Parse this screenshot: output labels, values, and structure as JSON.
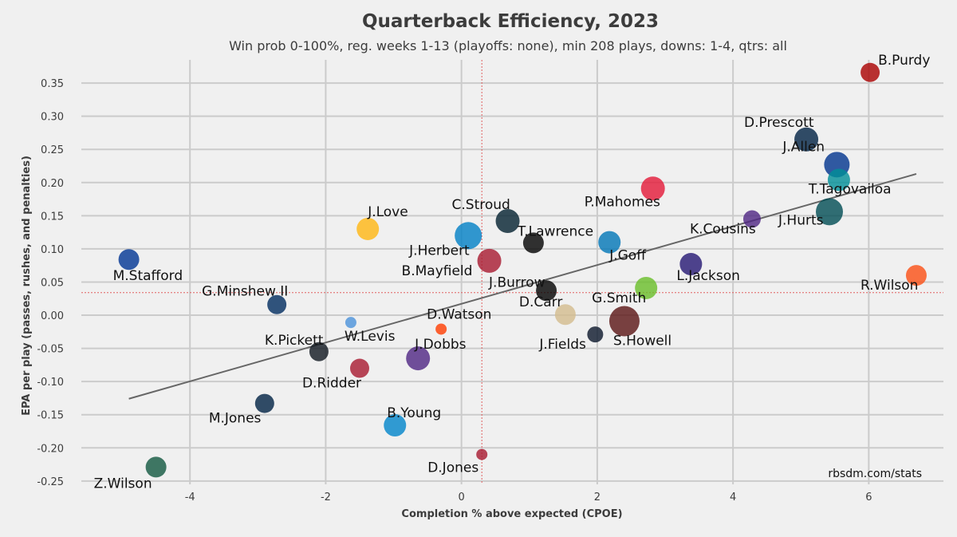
{
  "chart_data": {
    "type": "scatter",
    "title": "Quarterback Efficiency, 2023",
    "subtitle": "Win prob 0-100%, reg. weeks 1-13 (playoffs: none), min 208 plays, downs: 1-4, qtrs: all",
    "xlabel": "Completion % above expected (CPOE)",
    "ylabel": "EPA per play (passes, rushes, and penalties)",
    "xlim": [
      -5.6,
      7.1
    ],
    "ylim": [
      -0.255,
      0.385
    ],
    "xticks": [
      -4,
      -2,
      0,
      2,
      4,
      6
    ],
    "yticks": [
      0.35,
      0.3,
      0.25,
      0.2,
      0.15,
      0.1,
      0.05,
      0.0,
      -0.05,
      -0.1,
      -0.15,
      -0.2,
      -0.25
    ],
    "xtick_labels": [
      "-4",
      "-2",
      "0",
      "2",
      "4",
      "6"
    ],
    "ytick_labels": [
      "0.35",
      "0.30",
      "0.25",
      "0.20",
      "0.15",
      "0.10",
      "0.05",
      "0.00",
      "-0.05",
      "-0.10",
      "-0.15",
      "-0.20",
      "-0.25"
    ],
    "grid": true,
    "mean_x": 0.3,
    "mean_y": 0.034,
    "trendline": {
      "x": [
        -4.9,
        6.7
      ],
      "y": [
        -0.126,
        0.213
      ]
    },
    "credit": "rbsdm.com/stats",
    "points": [
      {
        "label": "B.Purdy",
        "x": 6.02,
        "y": 0.366,
        "color": "#aa0000",
        "size": 12,
        "label_dx": 10,
        "label_dy": -10
      },
      {
        "label": "D.Prescott",
        "x": 5.08,
        "y": 0.265,
        "color": "#002244",
        "size": 15,
        "label_dx": -78,
        "label_dy": -16
      },
      {
        "label": "J.Allen",
        "x": 5.53,
        "y": 0.227,
        "color": "#00338d",
        "size": 16,
        "label_dx": -68,
        "label_dy": -17
      },
      {
        "label": "T.Tagovailoa",
        "x": 5.56,
        "y": 0.204,
        "color": "#008e97",
        "size": 14,
        "label_dx": -38,
        "label_dy": 17
      },
      {
        "label": "J.Hurts",
        "x": 5.42,
        "y": 0.156,
        "color": "#004c54",
        "size": 17,
        "label_dx": -64,
        "label_dy": 16
      },
      {
        "label": "R.Wilson",
        "x": 6.7,
        "y": 0.06,
        "color": "#fb4f14",
        "size": 13,
        "label_dx": -70,
        "label_dy": 18
      },
      {
        "label": "K.Cousins",
        "x": 4.28,
        "y": 0.145,
        "color": "#4f2683",
        "size": 11,
        "label_dx": -78,
        "label_dy": 18
      },
      {
        "label": "L.Jackson",
        "x": 3.38,
        "y": 0.077,
        "color": "#241773",
        "size": 14,
        "label_dx": -18,
        "label_dy": 20
      },
      {
        "label": "P.Mahomes",
        "x": 2.82,
        "y": 0.191,
        "color": "#e31837",
        "size": 15,
        "label_dx": -86,
        "label_dy": 22
      },
      {
        "label": "J.Goff",
        "x": 2.18,
        "y": 0.11,
        "color": "#0076b6",
        "size": 14,
        "label_dx": 0,
        "label_dy": 22
      },
      {
        "label": "G.Smith",
        "x": 2.72,
        "y": 0.041,
        "color": "#69be28",
        "size": 14,
        "label_dx": -68,
        "label_dy": 18
      },
      {
        "label": "S.Howell",
        "x": 2.4,
        "y": -0.009,
        "color": "#5a1414",
        "size": 19,
        "label_dx": -14,
        "label_dy": 30
      },
      {
        "label": "J.Fields",
        "x": 1.97,
        "y": -0.029,
        "color": "#0b162a",
        "size": 10,
        "label_dx": -70,
        "label_dy": 18
      },
      {
        "label": "D.Carr",
        "x": 1.53,
        "y": 0.001,
        "color": "#d3bc8d",
        "size": 13,
        "label_dx": -58,
        "label_dy": -10
      },
      {
        "label": "D.Watson",
        "x": -0.3,
        "y": -0.021,
        "color": "#ff3c00",
        "size": 7,
        "label_dx": -18,
        "label_dy": -13
      },
      {
        "label": "J.Burrow",
        "x": 1.25,
        "y": 0.037,
        "color": "#000000",
        "size": 13,
        "label_dx": -72,
        "label_dy": -5
      },
      {
        "label": "T.Lawrence",
        "x": 1.06,
        "y": 0.109,
        "color": "#000000",
        "size": 13,
        "label_dx": -20,
        "label_dy": -9
      },
      {
        "label": "C.Stroud",
        "x": 0.68,
        "y": 0.142,
        "color": "#03202f",
        "size": 15,
        "label_dx": -70,
        "label_dy": -15
      },
      {
        "label": "J.Herbert",
        "x": 0.1,
        "y": 0.12,
        "color": "#0080c6",
        "size": 17,
        "label_dx": -74,
        "label_dy": 24
      },
      {
        "label": "B.Mayfield",
        "x": 0.41,
        "y": 0.082,
        "color": "#a71930",
        "size": 15,
        "label_dx": -110,
        "label_dy": 18
      },
      {
        "label": "J.Love",
        "x": -1.38,
        "y": 0.13,
        "color": "#ffb612",
        "size": 14,
        "label_dx": 0,
        "label_dy": -16
      },
      {
        "label": "M.Stafford",
        "x": -4.9,
        "y": 0.084,
        "color": "#003594",
        "size": 13,
        "label_dx": -20,
        "label_dy": 26
      },
      {
        "label": "G.Minshew II",
        "x": -2.72,
        "y": 0.016,
        "color": "#002c5f",
        "size": 12,
        "label_dx": -94,
        "label_dy": -11
      },
      {
        "label": "W.Levis",
        "x": -1.63,
        "y": -0.011,
        "color": "#4b92db",
        "size": 7,
        "label_dx": -8,
        "label_dy": 23
      },
      {
        "label": "K.Pickett",
        "x": -2.1,
        "y": -0.055,
        "color": "#101820",
        "size": 12,
        "label_dx": -68,
        "label_dy": -9
      },
      {
        "label": "J.Dobbs",
        "x": -0.64,
        "y": -0.065,
        "color": "#4f2683",
        "size": 15,
        "label_dx": -4,
        "label_dy": -12
      },
      {
        "label": "D.Ridder",
        "x": -1.5,
        "y": -0.08,
        "color": "#a71930",
        "size": 12,
        "label_dx": -72,
        "label_dy": 24
      },
      {
        "label": "M.Jones",
        "x": -2.9,
        "y": -0.133,
        "color": "#002244",
        "size": 12,
        "label_dx": -70,
        "label_dy": 24
      },
      {
        "label": "B.Young",
        "x": -0.98,
        "y": -0.166,
        "color": "#0085ca",
        "size": 14,
        "label_dx": -10,
        "label_dy": -10
      },
      {
        "label": "D.Jones",
        "x": 0.3,
        "y": -0.21,
        "color": "#a71930",
        "size": 7,
        "label_dx": -68,
        "label_dy": 22
      },
      {
        "label": "Z.Wilson",
        "x": -4.5,
        "y": -0.229,
        "color": "#125740",
        "size": 13,
        "label_dx": -78,
        "label_dy": 26
      }
    ]
  }
}
